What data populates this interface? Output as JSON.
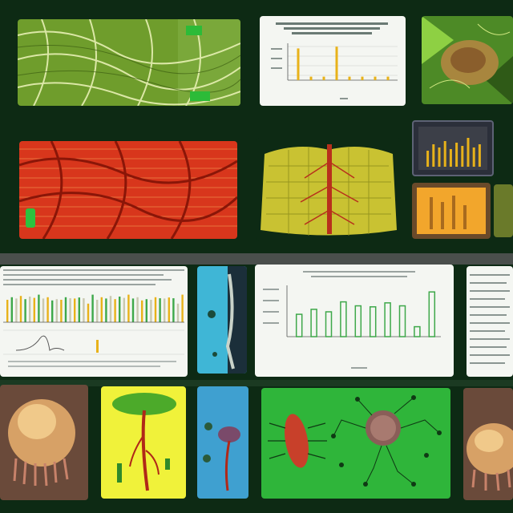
{
  "theme": {
    "background": "#0d2a14",
    "panel_white": "#f4f6f2",
    "bar_yellow": "#e8b21a",
    "bar_green": "#3ea84a",
    "leaf_green": "#8fc63b",
    "tissue_red": "#d8361c",
    "cyan": "#3fb6d6",
    "bright_green": "#2fb53a"
  },
  "tiles": [
    {
      "id": "leaf-vein-texture",
      "icon": "leaf-vein-icon"
    },
    {
      "id": "bar-chart-yellow",
      "icon": "bar-chart-icon"
    },
    {
      "id": "green-organism-photo",
      "icon": "organism-icon"
    },
    {
      "id": "red-vascular-tissue",
      "icon": "vascular-icon"
    },
    {
      "id": "yellow-lung-scan",
      "icon": "lung-icon"
    },
    {
      "id": "monitor-chart-small",
      "icon": "monitor-icon"
    },
    {
      "id": "orange-chart-small",
      "icon": "bar-chart-icon"
    },
    {
      "id": "data-sheet-large",
      "icon": "spreadsheet-icon"
    },
    {
      "id": "blue-specimen-card",
      "icon": "specimen-icon"
    },
    {
      "id": "green-bar-chart",
      "icon": "bar-chart-icon"
    },
    {
      "id": "data-sheet-right",
      "icon": "spreadsheet-icon"
    },
    {
      "id": "jellyfish-specimen",
      "icon": "jellyfish-icon"
    },
    {
      "id": "mushroom-plant",
      "icon": "plant-icon"
    },
    {
      "id": "blue-plant-card",
      "icon": "plant-icon"
    },
    {
      "id": "microbe-diagram",
      "icon": "microbe-icon"
    },
    {
      "id": "jellyfish-specimen-right",
      "icon": "jellyfish-icon"
    }
  ],
  "chart_data": [
    {
      "type": "bar",
      "title": "",
      "series": [
        {
          "values": [
            0.9,
            0.1,
            0.1,
            0.95,
            0.1,
            0.1,
            0.1,
            0.1
          ]
        }
      ],
      "colors": [
        "#e8b21a"
      ]
    },
    {
      "type": "bar",
      "title": "",
      "series": [
        {
          "values": [
            0.45,
            0.55,
            0.5,
            0.7,
            0.62,
            0.6,
            0.68,
            0.62,
            0.2,
            0.9
          ]
        }
      ],
      "colors": [
        "#3ea84a"
      ]
    },
    {
      "type": "bar",
      "title": "",
      "series": [
        {
          "values": [
            0.5,
            0.7,
            0.6,
            0.8,
            0.55,
            0.75,
            0.65,
            0.9,
            0.6,
            0.7
          ]
        }
      ],
      "colors": [
        "#e8b21a"
      ]
    }
  ]
}
